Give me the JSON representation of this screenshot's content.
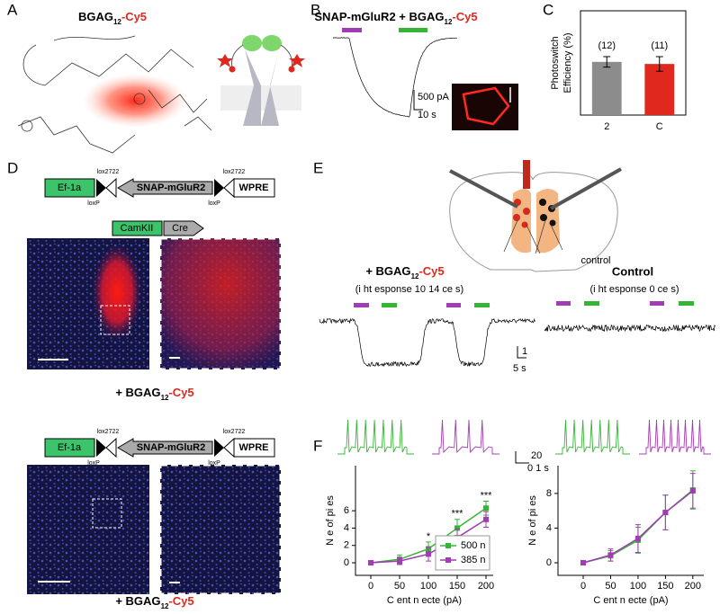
{
  "panel_labels": [
    "A",
    "B",
    "C",
    "D",
    "E",
    "F"
  ],
  "panel_a": {
    "title": [
      "BGAG",
      "12",
      "-Cy5"
    ]
  },
  "panel_b": {
    "title": [
      "SNAP-mGluR2 + BGAG",
      "12",
      "-Cy5"
    ],
    "scale_current": "500 pA",
    "scale_time": "10 s"
  },
  "panel_d": {
    "construct_top": {
      "promoter": "Ef-1a",
      "lox_left": "lox2722",
      "gene": "SNAP-mGluR2",
      "lox_right": "lox2722",
      "end": "WPRE",
      "loxp_left": "loxP",
      "loxp_right": "loxP"
    },
    "cre_construct": {
      "promoter": "CamKII",
      "gene": "Cre"
    },
    "label_top": [
      "+ BGAG",
      "12",
      "-Cy5"
    ],
    "construct_bottom": {
      "promoter": "Ef-1a",
      "lox_left": "lox2722",
      "gene": "SNAP-mGluR2",
      "lox_right": "lox2722",
      "end": "WPRE",
      "loxp_left": "loxP",
      "loxp_right": "loxP"
    },
    "label_bottom": [
      "+ BGAG",
      "12",
      "-Cy5"
    ]
  },
  "panel_e": {
    "left_title": [
      "+ BGAG",
      "12",
      "-Cy5"
    ],
    "left_note": "(i ht esponse 10 14 ce s)",
    "right_title": "Control",
    "right_note": "(i ht esponse 0 ce s)",
    "brain_label": "control",
    "scale_y": "1",
    "scale_x": "5 s"
  },
  "panel_f": {
    "scale_y": "20",
    "scale_x": "0 1 s"
  },
  "chart_data": [
    {
      "type": "bar",
      "ylabel": [
        "Photoswitch",
        "Efficiency (%)"
      ],
      "categories": [
        "2",
        "C"
      ],
      "values": [
        51,
        49
      ],
      "errors": [
        5,
        7
      ],
      "annotations": [
        "(12)",
        "(11)"
      ],
      "colors": [
        "#8c8c8c",
        "#e0281e"
      ],
      "label_colors": [
        "#000000",
        "#e0281e"
      ],
      "ylim": [
        0,
        100
      ]
    },
    {
      "type": "line",
      "xlabel": "C ent n ecte (pA)",
      "ylabel": "N e of pi es",
      "x": [
        0,
        50,
        100,
        150,
        200
      ],
      "series": [
        {
          "name": "500 n",
          "color": "#35b535",
          "marker": "square",
          "values": [
            0,
            0.4,
            1.6,
            4.0,
            6.3
          ],
          "errors": [
            0.1,
            0.5,
            0.8,
            1.0,
            0.8
          ],
          "significance": [
            null,
            null,
            "*",
            "***",
            "***"
          ]
        },
        {
          "name": "385 n",
          "color": "#a23cb4",
          "marker": "square",
          "values": [
            0,
            0.2,
            1.0,
            2.9,
            5.0
          ],
          "errors": [
            0.1,
            0.4,
            0.8,
            1.0,
            0.9
          ]
        }
      ],
      "xlim": [
        -26.6,
        212.5
      ],
      "xticks": [
        0,
        50,
        100,
        150,
        200
      ],
      "ylim": [
        -1.45,
        11.2
      ],
      "yticks": [
        0,
        2,
        4,
        6
      ],
      "legend": "lower right"
    },
    {
      "type": "line",
      "xlabel": "C ent n ecte (pA)",
      "ylabel": "N e of pi es",
      "x": [
        0,
        50,
        100,
        150,
        200
      ],
      "series": [
        {
          "color": "#35b535",
          "marker": "square",
          "values": [
            0,
            0.8,
            2.6,
            5.8,
            8.4
          ],
          "errors": [
            0.1,
            0.6,
            1.5,
            2.0,
            2.2
          ]
        },
        {
          "color": "#a23cb4",
          "marker": "square",
          "values": [
            0,
            0.9,
            2.8,
            5.8,
            8.3
          ],
          "errors": [
            0.1,
            0.7,
            1.6,
            2.0,
            2.0
          ]
        }
      ],
      "xlim": [
        -46,
        220
      ],
      "xticks": [
        0,
        50,
        100,
        150,
        200
      ],
      "ylim": [
        -1.45,
        11.2
      ],
      "yticks": [
        0,
        4,
        8
      ]
    }
  ]
}
